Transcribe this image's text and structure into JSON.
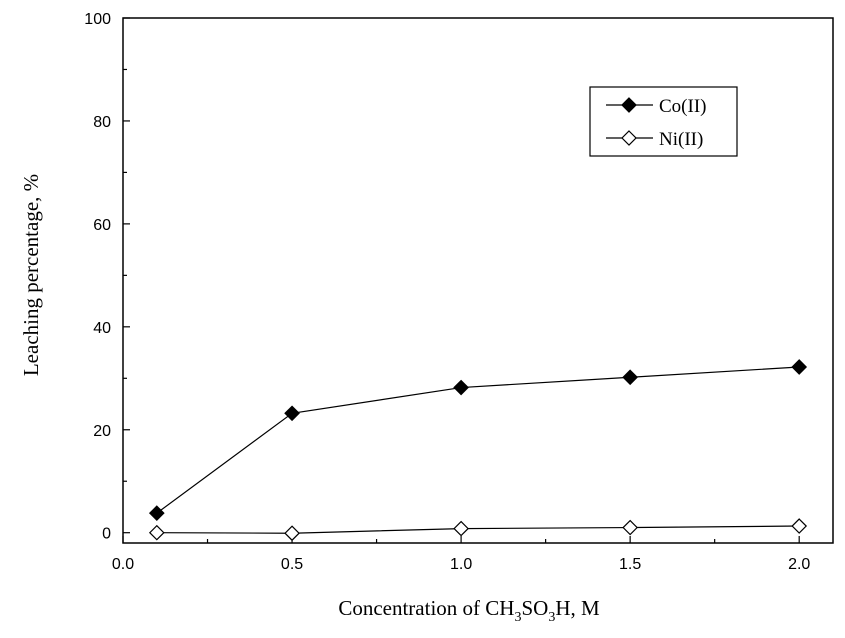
{
  "chart_data": {
    "type": "line",
    "title": "",
    "xlabel": {
      "prefix": "Concentration of CH",
      "sub1": "3",
      "mid": "SO",
      "sub2": "3",
      "suffix": "H, M"
    },
    "ylabel": "Leaching percentage, %",
    "xlim": [
      0.0,
      2.1
    ],
    "ylim": [
      -2,
      100
    ],
    "xticks": [
      "0.0",
      "0.5",
      "1.0",
      "1.5",
      "2.0"
    ],
    "yticks": [
      "0",
      "20",
      "40",
      "60",
      "80",
      "100"
    ],
    "grid": false,
    "legend_position": "top-right",
    "x": [
      0.1,
      0.5,
      1.0,
      1.5,
      2.0
    ],
    "series": [
      {
        "name": "Co(II)",
        "marker": "filled-diamond",
        "values": [
          3.8,
          23.2,
          28.2,
          30.2,
          32.2
        ]
      },
      {
        "name": "Ni(II)",
        "marker": "open-diamond",
        "values": [
          0.0,
          -0.1,
          0.8,
          1.0,
          1.3
        ]
      }
    ],
    "colors": {
      "line": "#000000",
      "axis": "#000000",
      "open_marker_fill": "#ffffff"
    }
  }
}
